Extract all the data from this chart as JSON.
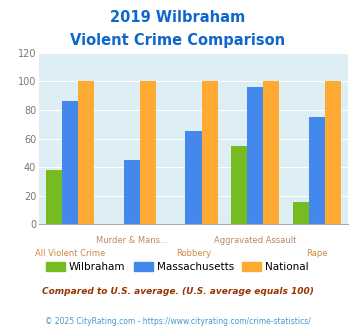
{
  "title_line1": "2019 Wilbraham",
  "title_line2": "Violent Crime Comparison",
  "categories": [
    "All Violent Crime",
    "Murder & Mans...",
    "Robbery",
    "Aggravated Assault",
    "Rape"
  ],
  "wilbraham": [
    38,
    0,
    0,
    55,
    16
  ],
  "massachusetts": [
    86,
    45,
    65,
    96,
    75
  ],
  "national": [
    100,
    100,
    100,
    100,
    100
  ],
  "wilbraham_color": "#77bb22",
  "massachusetts_color": "#4488ee",
  "national_color": "#ffaa33",
  "bg_color": "#ddeef5",
  "ylim": [
    0,
    120
  ],
  "yticks": [
    0,
    20,
    40,
    60,
    80,
    100,
    120
  ],
  "title_color": "#1166cc",
  "xlabel_top_color": "#bb8866",
  "xlabel_bottom_color": "#cc8844",
  "legend_label_wilbraham": "Wilbraham",
  "legend_label_massachusetts": "Massachusetts",
  "legend_label_national": "National",
  "footnote1": "Compared to U.S. average. (U.S. average equals 100)",
  "footnote2": "© 2025 CityRating.com - https://www.cityrating.com/crime-statistics/",
  "footnote1_color": "#993300",
  "footnote2_color": "#4499cc"
}
